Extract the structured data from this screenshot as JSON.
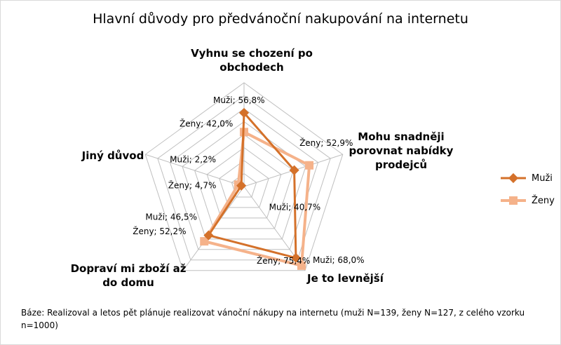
{
  "chart_data": {
    "type": "radar",
    "title": "Hlavní důvody pro předvánoční nakupování na internetu",
    "axes": [
      [
        "Vyhnu se chození po",
        "obchodech"
      ],
      [
        "Mohu snadněji",
        "porovnat nabídky",
        "prodejců"
      ],
      [
        "Je to levnější"
      ],
      [
        "Dopraví mi zboží až",
        "do domu"
      ],
      [
        "Jiný důvod"
      ]
    ],
    "rlim": [
      0,
      80
    ],
    "grid": true,
    "legend_position": "right",
    "series": [
      {
        "name": "Muži",
        "color": "#D4712A",
        "values": [
          56.8,
          40.7,
          68.0,
          46.5,
          2.2
        ],
        "labels": [
          "Muži; 56,8%",
          "Muži; 40,7%",
          "Muži; 68,0%",
          "Muži; 46,5%",
          "Muži; 2,2%"
        ]
      },
      {
        "name": "Ženy",
        "color": "#F5B28A",
        "values": [
          42.0,
          52.9,
          75.4,
          52.2,
          4.7
        ],
        "labels": [
          "Ženy; 42,0%",
          "Ženy; 52,9%",
          "Ženy; 75,4%",
          "Ženy; 52,2%",
          "Ženy; 4,7%"
        ]
      }
    ]
  },
  "footnote": "Báze:  Realizoval a letos  pět plánuje realizovat vánoční  nákupy na internetu  (muži N=139, ženy N=127, z celého vzorku n=1000)"
}
